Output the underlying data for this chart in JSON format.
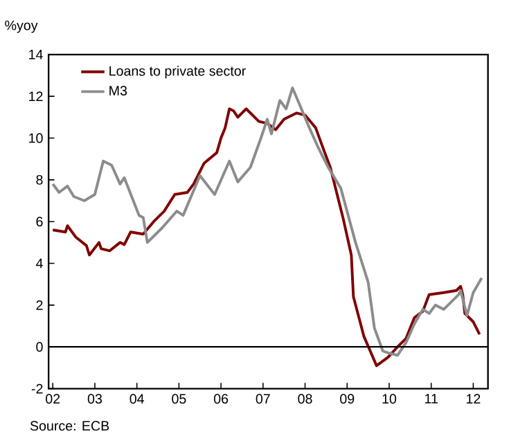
{
  "chart_data": {
    "type": "line",
    "ylabel": "%yoy",
    "annotations": [
      "Source: ECB"
    ],
    "xlim": [
      2001.9,
      2012.35
    ],
    "ylim": [
      -2,
      14
    ],
    "xticks": [
      {
        "value": 2002,
        "label": "02"
      },
      {
        "value": 2003,
        "label": "03"
      },
      {
        "value": 2004,
        "label": "04"
      },
      {
        "value": 2005,
        "label": "05"
      },
      {
        "value": 2006,
        "label": "06"
      },
      {
        "value": 2007,
        "label": "07"
      },
      {
        "value": 2008,
        "label": "08"
      },
      {
        "value": 2009,
        "label": "09"
      },
      {
        "value": 2010,
        "label": "10"
      },
      {
        "value": 2011,
        "label": "11"
      },
      {
        "value": 2012,
        "label": "12"
      }
    ],
    "yticks": [
      -2,
      0,
      2,
      4,
      6,
      8,
      10,
      12,
      14
    ],
    "legend": "top left",
    "marker": "none",
    "line_style": "solid",
    "ref_lines": [
      {
        "axis": "y",
        "value": 0,
        "color": "#000000"
      }
    ],
    "series": [
      {
        "name": "Loans to private sector",
        "color": "#800000",
        "x": [
          2002.0,
          2002.3,
          2002.35,
          2002.55,
          2002.8,
          2002.87,
          2003.1,
          2003.15,
          2003.35,
          2003.6,
          2003.7,
          2003.85,
          2004.15,
          2004.4,
          2004.65,
          2004.9,
          2005.2,
          2005.35,
          2005.6,
          2005.9,
          2006.0,
          2006.1,
          2006.2,
          2006.3,
          2006.4,
          2006.6,
          2006.9,
          2007.1,
          2007.3,
          2007.5,
          2007.8,
          2008.0,
          2008.25,
          2008.45,
          2008.6,
          2008.9,
          2009.1,
          2009.15,
          2009.4,
          2009.7,
          2009.97,
          2010.2,
          2010.4,
          2010.6,
          2010.8,
          2010.95,
          2011.3,
          2011.6,
          2011.7,
          2011.75,
          2011.8,
          2012.0,
          2012.15
        ],
        "values": [
          5.6,
          5.5,
          5.8,
          5.25,
          4.85,
          4.4,
          5.0,
          4.7,
          4.6,
          5.0,
          4.9,
          5.5,
          5.4,
          6.0,
          6.5,
          7.3,
          7.4,
          7.8,
          8.8,
          9.3,
          10.0,
          10.5,
          11.4,
          11.3,
          11.0,
          11.4,
          10.8,
          10.7,
          10.4,
          10.9,
          11.2,
          11.1,
          10.5,
          9.4,
          8.6,
          6.2,
          4.4,
          2.4,
          0.5,
          -0.9,
          -0.5,
          0.0,
          0.4,
          1.4,
          1.7,
          2.5,
          2.6,
          2.7,
          2.9,
          2.5,
          1.6,
          1.2,
          0.6
        ]
      },
      {
        "name": "M3",
        "color": "#8c8c8c",
        "x": [
          2002.0,
          2002.15,
          2002.35,
          2002.5,
          2002.75,
          2003.0,
          2003.2,
          2003.4,
          2003.6,
          2003.7,
          2004.05,
          2004.15,
          2004.25,
          2004.6,
          2004.95,
          2005.1,
          2005.5,
          2005.85,
          2006.2,
          2006.4,
          2006.7,
          2006.95,
          2007.1,
          2007.2,
          2007.4,
          2007.55,
          2007.7,
          2007.85,
          2008.1,
          2008.3,
          2008.55,
          2008.85,
          2009.2,
          2009.5,
          2009.65,
          2009.85,
          2010.0,
          2010.2,
          2010.4,
          2010.6,
          2010.8,
          2010.95,
          2011.1,
          2011.3,
          2011.5,
          2011.65,
          2011.7,
          2011.85,
          2012.0,
          2012.2
        ],
        "values": [
          7.8,
          7.4,
          7.7,
          7.2,
          7.0,
          7.3,
          8.9,
          8.7,
          7.8,
          8.1,
          6.3,
          6.2,
          5.0,
          5.7,
          6.5,
          6.3,
          8.2,
          7.3,
          8.9,
          7.9,
          8.6,
          10.0,
          10.9,
          10.2,
          11.8,
          11.4,
          12.4,
          11.7,
          10.5,
          9.6,
          8.6,
          7.6,
          5.0,
          3.1,
          0.9,
          -0.2,
          -0.3,
          -0.4,
          0.2,
          1.1,
          1.8,
          1.6,
          2.0,
          1.8,
          2.2,
          2.5,
          2.7,
          1.5,
          2.6,
          3.3
        ]
      }
    ]
  }
}
